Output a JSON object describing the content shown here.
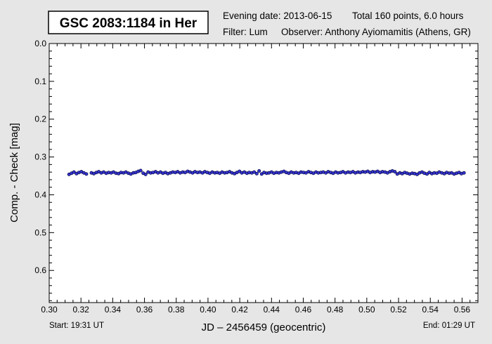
{
  "header": {
    "title": "GSC 2083:1184 in Her",
    "evening_date": "Evening date: 2013-06-15",
    "total": "Total 160 points, 6.0 hours",
    "filter": "Filter: Lum",
    "observer": "Observer: Anthony Ayiomamitis (Athens, GR)"
  },
  "footer": {
    "start": "Start: 19:31 UT",
    "end": "End: 01:29 UT"
  },
  "colors": {
    "background": "#e6e6e6",
    "plot_background": "#ffffff",
    "point_fill": "#3333cc",
    "point_stroke": "#000033"
  },
  "chart_data": {
    "type": "scatter",
    "xlabel": "JD – 2456459  (geocentric)",
    "ylabel": "Comp. - Check [mag]",
    "xlim": [
      0.3,
      0.57
    ],
    "ylim": [
      0.0,
      0.685
    ],
    "y_inverted": true,
    "grid": false,
    "x_ticks": [
      "0.30",
      "0.32",
      "0.34",
      "0.36",
      "0.38",
      "0.40",
      "0.42",
      "0.44",
      "0.46",
      "0.48",
      "0.50",
      "0.52",
      "0.54",
      "0.56"
    ],
    "y_ticks": [
      "0.0",
      "0.1",
      "0.2",
      "0.3",
      "0.4",
      "0.5",
      "0.6"
    ],
    "series": [
      {
        "x": [
          0.3125,
          0.3141,
          0.3156,
          0.3172,
          0.3187,
          0.3203,
          0.3218,
          0.3234,
          0.3266,
          0.3281,
          0.3297,
          0.3312,
          0.3328,
          0.3343,
          0.3359,
          0.3374,
          0.339,
          0.3405,
          0.3421,
          0.3437,
          0.3452,
          0.3468,
          0.3483,
          0.3499,
          0.3514,
          0.353,
          0.3545,
          0.3561,
          0.3576,
          0.3592,
          0.3607,
          0.3623,
          0.3639,
          0.3654,
          0.367,
          0.3685,
          0.3701,
          0.3716,
          0.3732,
          0.3747,
          0.3763,
          0.3778,
          0.3794,
          0.3809,
          0.3825,
          0.3841,
          0.3856,
          0.3872,
          0.3887,
          0.3903,
          0.3918,
          0.3934,
          0.3949,
          0.3965,
          0.398,
          0.3996,
          0.4011,
          0.4027,
          0.4043,
          0.4058,
          0.4074,
          0.4089,
          0.4105,
          0.412,
          0.4136,
          0.4151,
          0.4167,
          0.4182,
          0.4198,
          0.4213,
          0.4229,
          0.4245,
          0.426,
          0.4276,
          0.4291,
          0.4307,
          0.4322,
          0.4338,
          0.4353,
          0.4369,
          0.4384,
          0.44,
          0.4415,
          0.4431,
          0.4447,
          0.4462,
          0.4478,
          0.4493,
          0.4509,
          0.4524,
          0.454,
          0.4555,
          0.4571,
          0.4586,
          0.4602,
          0.4617,
          0.4633,
          0.4648,
          0.4664,
          0.468,
          0.4695,
          0.4711,
          0.4726,
          0.4742,
          0.4757,
          0.4773,
          0.4788,
          0.4804,
          0.4819,
          0.4835,
          0.485,
          0.4866,
          0.4882,
          0.4897,
          0.4913,
          0.4928,
          0.4944,
          0.4959,
          0.4975,
          0.499,
          0.5006,
          0.5021,
          0.5037,
          0.5052,
          0.5068,
          0.5084,
          0.5099,
          0.5115,
          0.513,
          0.5146,
          0.5161,
          0.5177,
          0.5192,
          0.5208,
          0.5223,
          0.5239,
          0.5254,
          0.527,
          0.5286,
          0.5301,
          0.5317,
          0.5332,
          0.5348,
          0.5363,
          0.5379,
          0.5394,
          0.541,
          0.5425,
          0.5441,
          0.5456,
          0.5472,
          0.5488,
          0.5503,
          0.5519,
          0.5534,
          0.555,
          0.5565,
          0.5581,
          0.5596,
          0.5612
        ],
        "y": [
          0.346,
          0.343,
          0.34,
          0.344,
          0.341,
          0.339,
          0.342,
          0.345,
          0.342,
          0.344,
          0.341,
          0.339,
          0.342,
          0.34,
          0.343,
          0.341,
          0.342,
          0.34,
          0.343,
          0.344,
          0.341,
          0.342,
          0.34,
          0.343,
          0.345,
          0.342,
          0.341,
          0.338,
          0.336,
          0.343,
          0.346,
          0.34,
          0.342,
          0.341,
          0.339,
          0.342,
          0.34,
          0.343,
          0.341,
          0.344,
          0.342,
          0.34,
          0.341,
          0.339,
          0.342,
          0.34,
          0.341,
          0.338,
          0.34,
          0.342,
          0.339,
          0.341,
          0.34,
          0.342,
          0.339,
          0.341,
          0.343,
          0.34,
          0.342,
          0.341,
          0.343,
          0.34,
          0.342,
          0.341,
          0.339,
          0.342,
          0.344,
          0.341,
          0.338,
          0.342,
          0.34,
          0.343,
          0.341,
          0.342,
          0.34,
          0.344,
          0.337,
          0.345,
          0.341,
          0.343,
          0.342,
          0.34,
          0.343,
          0.341,
          0.342,
          0.34,
          0.338,
          0.341,
          0.343,
          0.34,
          0.342,
          0.341,
          0.343,
          0.34,
          0.341,
          0.342,
          0.339,
          0.341,
          0.343,
          0.34,
          0.342,
          0.341,
          0.34,
          0.342,
          0.339,
          0.341,
          0.343,
          0.34,
          0.342,
          0.341,
          0.339,
          0.342,
          0.34,
          0.341,
          0.339,
          0.342,
          0.34,
          0.341,
          0.339,
          0.34,
          0.338,
          0.341,
          0.339,
          0.34,
          0.338,
          0.341,
          0.339,
          0.34,
          0.342,
          0.339,
          0.337,
          0.339,
          0.345,
          0.342,
          0.344,
          0.341,
          0.343,
          0.345,
          0.343,
          0.344,
          0.346,
          0.342,
          0.34,
          0.343,
          0.345,
          0.341,
          0.344,
          0.342,
          0.343,
          0.34,
          0.342,
          0.344,
          0.341,
          0.343,
          0.342,
          0.345,
          0.343,
          0.341,
          0.344,
          0.342
        ]
      }
    ]
  }
}
